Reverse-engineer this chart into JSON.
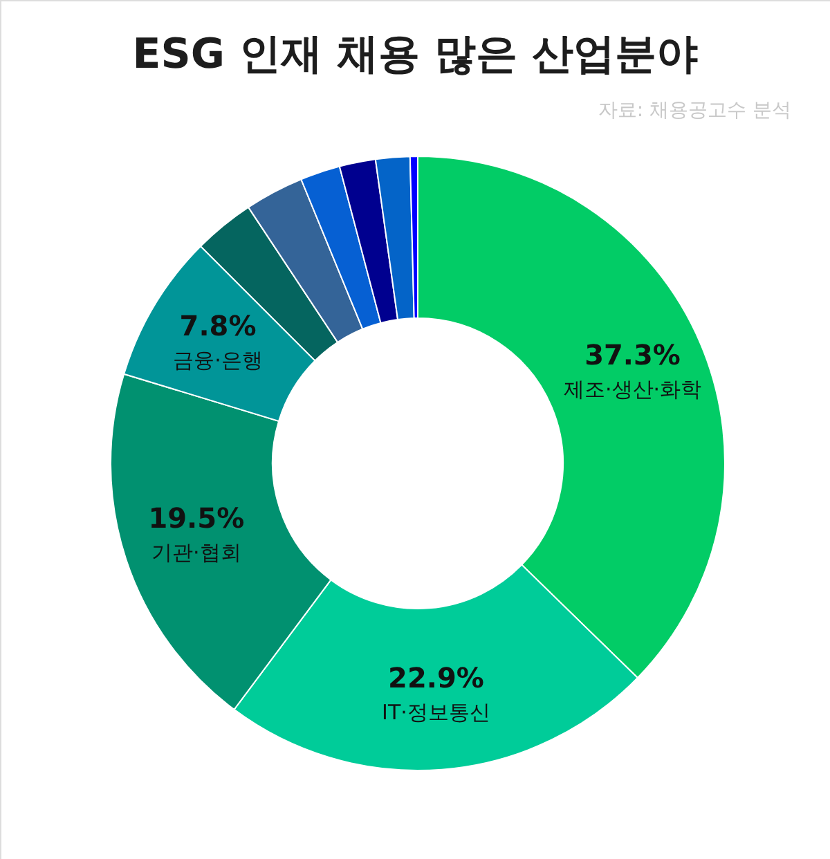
{
  "chart_data": {
    "type": "donut",
    "title": "ESG 인재 채용 많은 산업분야",
    "annotations": [
      "자료: 채용공고수 분석"
    ],
    "categories": [
      "제조·생산·화학",
      "IT·정보통신",
      "기관·협회",
      "금융·은행",
      null,
      null,
      null,
      null,
      null,
      null
    ],
    "values": [
      37.3,
      22.9,
      19.5,
      7.8,
      3.2,
      3.1,
      2.1,
      1.9,
      1.8,
      0.4
    ],
    "colors": [
      "#02cc66",
      "#00cc99",
      "#019170",
      "#019598",
      "#05655f",
      "#346498",
      "#0660d3",
      "#00008f",
      "#0464c8",
      "#0000ff"
    ],
    "value_labels": [
      "37.3%",
      "22.9%",
      "19.5%",
      "7.8%",
      null,
      null,
      null,
      null,
      null,
      null
    ]
  }
}
